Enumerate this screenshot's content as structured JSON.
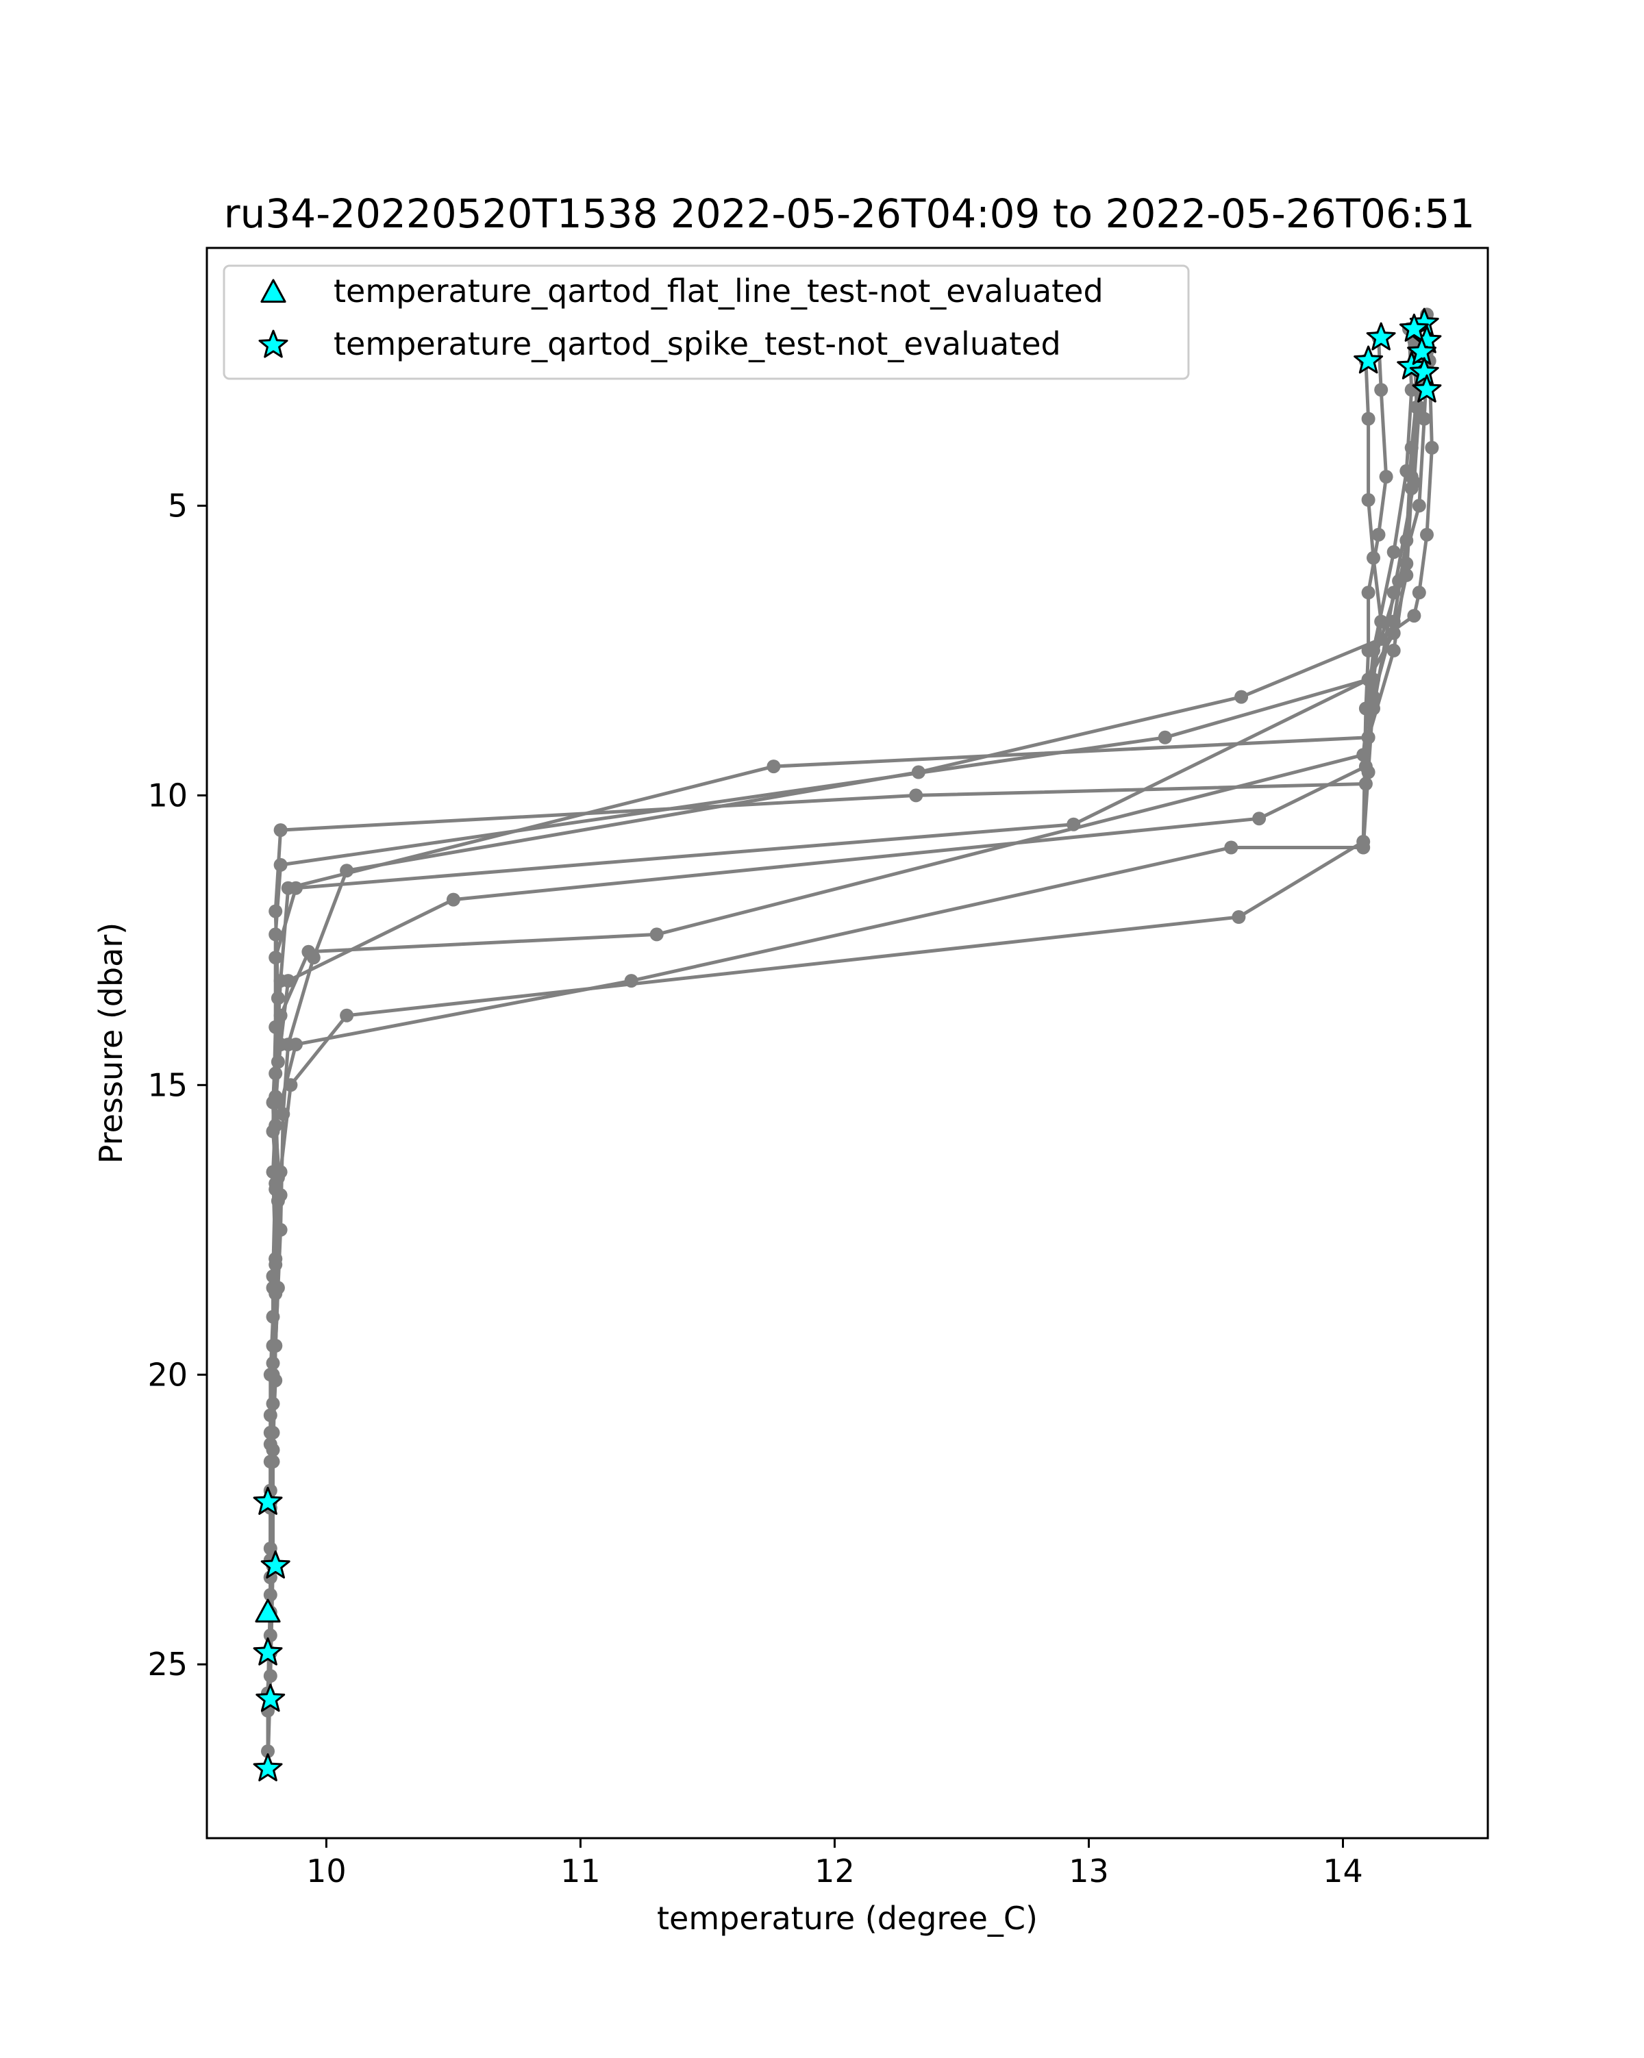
{
  "chart_data": {
    "type": "scatter",
    "title": "ru34-20220520T1538 2022-05-26T04:09 to 2022-05-26T06:51",
    "xlabel": "temperature (degree_C)",
    "ylabel": "Pressure (dbar)",
    "xlim": [
      9.53,
      14.57
    ],
    "ylim": [
      28.0,
      0.55
    ],
    "y_inverted": true,
    "grid": false,
    "legend_position": "upper-left",
    "x_ticks": [
      10,
      11,
      12,
      13,
      14
    ],
    "y_ticks": [
      5,
      10,
      15,
      20,
      25
    ],
    "colors": {
      "profile": "#808080",
      "flag_fill": "#00ffff",
      "flag_edge": "#000000"
    },
    "profiles": [
      {
        "x": [
          14.32,
          14.34,
          14.35,
          14.33,
          14.3,
          14.28,
          14.15,
          13.6,
          12.33,
          10.08,
          9.95,
          9.85,
          9.83,
          9.82,
          9.8,
          9.79,
          9.79,
          9.78,
          9.77
        ],
        "y": [
          1.85,
          2.5,
          4.0,
          5.5,
          6.5,
          6.9,
          7.3,
          8.3,
          9.6,
          11.3,
          12.8,
          14.3,
          15.5,
          17.5,
          19.5,
          21.5,
          23.3,
          25.2,
          26.8
        ]
      },
      {
        "x": [
          14.33,
          14.3,
          14.27,
          14.25,
          14.2,
          14.1,
          11.76,
          9.85,
          9.82,
          9.8,
          9.8,
          9.79,
          9.8,
          9.78,
          9.78,
          9.78,
          9.77,
          9.77
        ],
        "y": [
          1.7,
          3.0,
          4.5,
          6.0,
          7.5,
          9.0,
          9.5,
          11.6,
          13.2,
          14.8,
          16.5,
          18.3,
          20.1,
          22.0,
          23.5,
          24.1,
          25.5,
          26.5
        ]
      },
      {
        "x": [
          14.14,
          14.15,
          14.17,
          14.14,
          14.1,
          14.1,
          14.09,
          14.08,
          13.59,
          10.08,
          9.86,
          9.82,
          9.8,
          9.8,
          9.79,
          9.78,
          9.78,
          9.78,
          9.77,
          9.77
        ],
        "y": [
          2.1,
          3.0,
          4.5,
          5.5,
          6.5,
          7.5,
          8.5,
          10.8,
          12.1,
          13.8,
          15.0,
          16.5,
          18.0,
          19.5,
          21.0,
          22.2,
          23.5,
          24.8,
          25.8,
          26.8
        ]
      },
      {
        "x": [
          14.09,
          14.1,
          14.1,
          14.12,
          14.15,
          14.12,
          14.1,
          14.09,
          12.32,
          9.82,
          9.8,
          9.81,
          9.79,
          9.8,
          9.81,
          9.79,
          9.78,
          9.78,
          9.77
        ],
        "y": [
          2.5,
          3.5,
          4.9,
          5.9,
          7.0,
          8.0,
          9.0,
          9.8,
          10.0,
          10.6,
          12.0,
          13.5,
          15.3,
          16.8,
          18.5,
          20.5,
          22.2,
          23.8,
          25.5
        ]
      },
      {
        "x": [
          14.28,
          14.29,
          14.27,
          14.25,
          14.2,
          14.1,
          13.3,
          9.82,
          9.8,
          9.8,
          9.79,
          9.81,
          9.79,
          9.78,
          9.78,
          9.78
        ],
        "y": [
          2.15,
          3.3,
          4.7,
          6.2,
          7.2,
          8.0,
          9.0,
          11.2,
          12.4,
          14.0,
          15.8,
          17.0,
          19.0,
          20.7,
          22.2,
          24.8
        ]
      },
      {
        "x": [
          14.33,
          14.32,
          14.3,
          14.22,
          14.1,
          12.94,
          9.88,
          9.8,
          9.81,
          9.79,
          9.8,
          9.78,
          9.78,
          9.78
        ],
        "y": [
          2.6,
          3.5,
          5.0,
          6.3,
          8.0,
          10.5,
          11.6,
          12.8,
          14.6,
          16.5,
          18.0,
          20.0,
          21.5,
          23.2
        ]
      },
      {
        "x": [
          14.33,
          14.3,
          14.28,
          14.2,
          14.12,
          14.09,
          13.67,
          10.5,
          9.85,
          9.82,
          9.8,
          9.8,
          9.79,
          9.79,
          9.78
        ],
        "y": [
          2.35,
          3.3,
          4.6,
          6.5,
          8.5,
          9.5,
          10.4,
          11.8,
          13.2,
          14.3,
          15.3,
          16.7,
          18.5,
          20.0,
          21.0
        ]
      },
      {
        "x": [
          14.3,
          14.27,
          14.25,
          14.2,
          14.12,
          14.1,
          14.08,
          13.56,
          11.2,
          9.88,
          9.8,
          9.82,
          9.8,
          9.79,
          9.79,
          9.78,
          9.78
        ],
        "y": [
          2.7,
          4.0,
          5.6,
          7.0,
          8.3,
          9.6,
          10.9,
          10.9,
          13.2,
          14.3,
          15.7,
          16.9,
          18.6,
          19.8,
          21.3,
          23.0,
          24.5
        ]
      },
      {
        "x": [
          14.26,
          14.27,
          14.25,
          14.2,
          14.12,
          14.08,
          11.3,
          9.93,
          9.82,
          9.8,
          9.81,
          9.8,
          9.79,
          9.78,
          9.78
        ],
        "y": [
          1.95,
          3.0,
          4.4,
          5.8,
          7.5,
          9.3,
          12.4,
          12.7,
          13.8,
          15.2,
          16.6,
          18.1,
          19.5,
          21.2,
          22.3
        ]
      }
    ],
    "flags": [
      {
        "series": "temperature_qartod_flat_line_test-not_evaluated",
        "marker": "triangle",
        "x": [
          9.77
        ],
        "y": [
          24.1
        ]
      },
      {
        "series": "temperature_qartod_spike_test-not_evaluated",
        "marker": "star",
        "x": [
          14.32,
          14.33,
          14.28,
          14.15,
          14.27,
          14.31,
          14.32,
          14.1,
          14.33,
          9.77,
          9.8,
          9.77,
          9.78,
          9.77
        ],
        "y": [
          1.85,
          2.15,
          1.95,
          2.1,
          2.6,
          2.35,
          2.7,
          2.5,
          3.0,
          22.2,
          23.3,
          24.8,
          25.6,
          26.8
        ]
      }
    ],
    "legend": [
      {
        "label": "temperature_qartod_flat_line_test-not_evaluated",
        "marker": "triangle"
      },
      {
        "label": "temperature_qartod_spike_test-not_evaluated",
        "marker": "star"
      }
    ]
  }
}
